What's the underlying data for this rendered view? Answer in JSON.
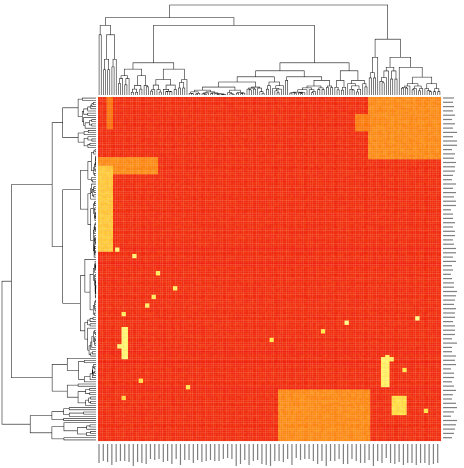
{
  "chart_data": {
    "type": "heatmap",
    "title": "",
    "xlabel": "",
    "ylabel": "",
    "grid": true,
    "rows": 160,
    "cols": 160,
    "row_labels_visible": true,
    "col_labels_visible": true,
    "row_dendrogram": "left",
    "col_dendrogram": "top",
    "colors": {
      "low": "#ee1c0e",
      "mid": "#fb7c0c",
      "high": "#ffe84a",
      "max": "#ffff88",
      "dendrogram": "#111111",
      "gridline": "#f6a08a"
    },
    "blocks": [
      {
        "row_range": [
          0,
          0.18
        ],
        "col_range": [
          0.79,
          1.0
        ],
        "value": 0.55
      },
      {
        "row_range": [
          0.18,
          0.22
        ],
        "col_range": [
          0.0,
          0.17
        ],
        "value": 0.55
      },
      {
        "row_range": [
          0.2,
          0.45
        ],
        "col_range": [
          0.0,
          0.04
        ],
        "value": 0.75
      },
      {
        "row_range": [
          0.85,
          1.0
        ],
        "col_range": [
          0.53,
          0.79
        ],
        "value": 0.55
      },
      {
        "row_range": [
          0.0,
          0.09
        ],
        "col_range": [
          0.03,
          0.04
        ],
        "value": 0.45
      }
    ],
    "hotspots": [
      {
        "row": 0.44,
        "col": 0.05,
        "value": 0.95
      },
      {
        "row": 0.46,
        "col": 0.1,
        "value": 0.95
      },
      {
        "row": 0.58,
        "col": 0.16,
        "value": 0.9
      },
      {
        "row": 0.6,
        "col": 0.14,
        "value": 0.9
      },
      {
        "row": 0.63,
        "col": 0.07,
        "value": 0.9
      },
      {
        "row": 0.64,
        "col": 0.93,
        "value": 1.0
      },
      {
        "row": 0.65,
        "col": 0.72,
        "value": 1.0
      },
      {
        "row": 0.72,
        "col": 0.06,
        "value": 0.95
      },
      {
        "row": 0.74,
        "col": 0.08,
        "value": 0.95
      },
      {
        "row": 0.75,
        "col": 0.84,
        "value": 0.9
      },
      {
        "row": 0.76,
        "col": 0.85,
        "value": 0.9
      },
      {
        "row": 0.78,
        "col": 0.83,
        "value": 0.9
      },
      {
        "row": 0.8,
        "col": 0.84,
        "value": 0.9
      },
      {
        "row": 0.79,
        "col": 0.89,
        "value": 0.85
      },
      {
        "row": 0.82,
        "col": 0.12,
        "value": 0.85
      },
      {
        "row": 0.84,
        "col": 0.26,
        "value": 0.85
      },
      {
        "row": 0.88,
        "col": 0.86,
        "value": 0.8
      },
      {
        "row": 0.9,
        "col": 0.87,
        "value": 0.8
      },
      {
        "row": 0.91,
        "col": 0.95,
        "value": 0.85
      },
      {
        "row": 0.87,
        "col": 0.07,
        "value": 0.8
      },
      {
        "row": 0.7,
        "col": 0.5,
        "value": 0.85
      },
      {
        "row": 0.68,
        "col": 0.65,
        "value": 0.85
      },
      {
        "row": 0.55,
        "col": 0.22,
        "value": 0.9
      },
      {
        "row": 0.51,
        "col": 0.17,
        "value": 0.9
      }
    ],
    "columns_hot": [
      {
        "col_range": [
          0.07,
          0.085
        ],
        "row_range": [
          0.67,
          0.76
        ],
        "value": 0.95
      },
      {
        "col_range": [
          0.83,
          0.85
        ],
        "row_range": [
          0.76,
          0.84
        ],
        "value": 0.92
      },
      {
        "col_range": [
          0.86,
          0.9
        ],
        "row_range": [
          0.87,
          0.92
        ],
        "value": 0.82
      },
      {
        "col_range": [
          0.75,
          0.79
        ],
        "row_range": [
          0.05,
          0.1
        ],
        "value": 0.5
      }
    ]
  }
}
